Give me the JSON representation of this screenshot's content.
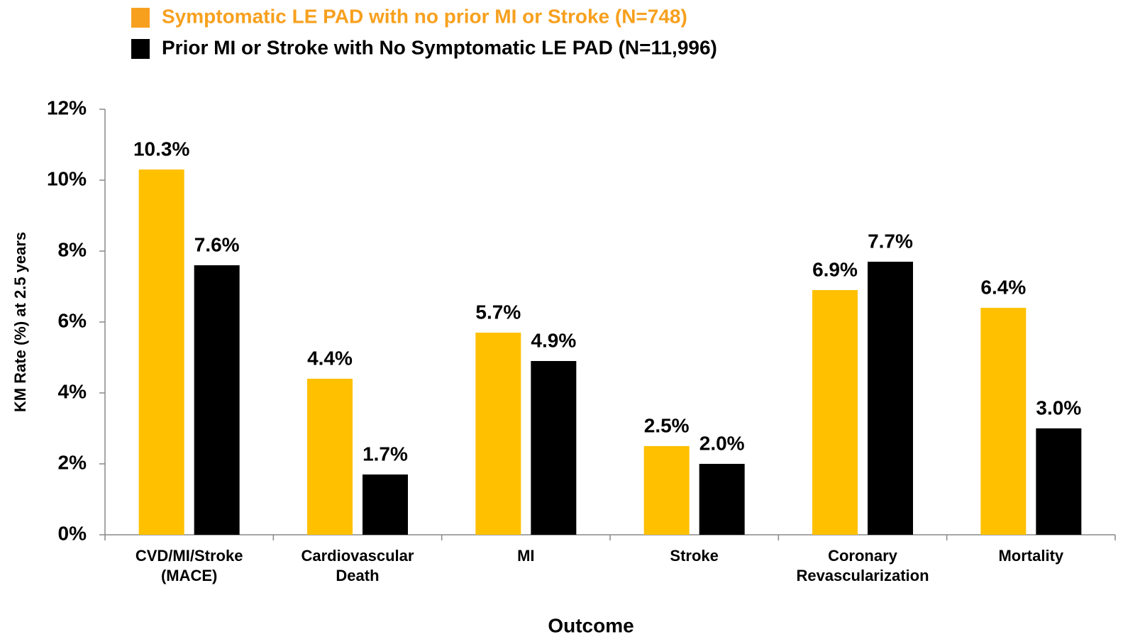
{
  "chart_data": {
    "type": "bar",
    "categories": [
      "CVD/MI/Stroke\n(MACE)",
      "Cardiovascular\nDeath",
      "MI",
      "Stroke",
      "Coronary\nRevascularization",
      "Mortality"
    ],
    "series": [
      {
        "name": "Symptomatic LE PAD with no prior MI or Stroke (N=748)",
        "color": "#ffc000",
        "legend_color": "#f7a01e",
        "values": [
          10.3,
          4.4,
          5.7,
          2.5,
          6.9,
          6.4
        ],
        "value_labels": [
          "10.3%",
          "4.4%",
          "5.7%",
          "2.5%",
          "6.9%",
          "6.4%"
        ]
      },
      {
        "name": "Prior MI or Stroke with No Symptomatic LE PAD (N=11,996)",
        "color": "#000000",
        "legend_color": "#000000",
        "values": [
          7.6,
          1.7,
          4.9,
          2.0,
          7.7,
          3.0
        ],
        "value_labels": [
          "7.6%",
          "1.7%",
          "4.9%",
          "2.0%",
          "7.7%",
          "3.0%"
        ]
      }
    ],
    "y_label": "KM Rate (%) at 2.5 years",
    "x_label": "Outcome",
    "ylim": [
      0,
      12
    ],
    "yticks": [
      {
        "value": 0,
        "label": "0%"
      },
      {
        "value": 2,
        "label": "2%"
      },
      {
        "value": 4,
        "label": "4%"
      },
      {
        "value": 6,
        "label": "6%"
      },
      {
        "value": 8,
        "label": "8%"
      },
      {
        "value": 10,
        "label": "10%"
      },
      {
        "value": 12,
        "label": "12%"
      }
    ],
    "grid": false
  }
}
